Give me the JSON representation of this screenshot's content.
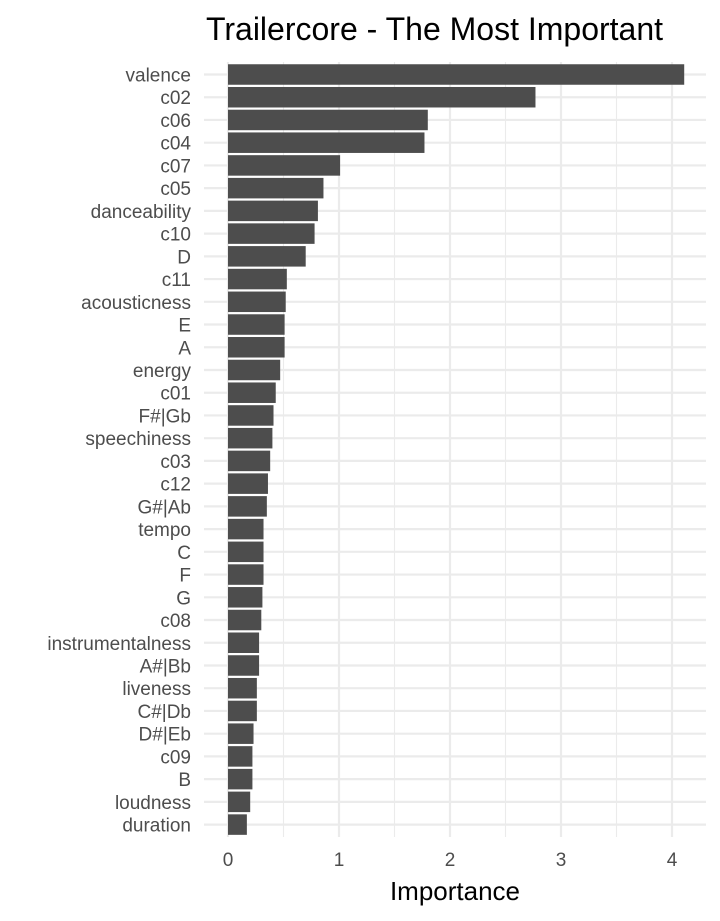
{
  "chart_data": {
    "type": "bar",
    "orientation": "horizontal",
    "title": "Trailercore - The Most Important",
    "xlabel": "Importance",
    "ylabel": "",
    "xlim": [
      0,
      4.2
    ],
    "xticks": [
      0,
      1,
      2,
      3,
      4
    ],
    "grid": true,
    "legend": "none",
    "bar_color": "#4d4d4d",
    "grid_color": "#ebebeb",
    "categories": [
      "valence",
      "c02",
      "c06",
      "c04",
      "c07",
      "c05",
      "danceability",
      "c10",
      "D",
      "c11",
      "acousticness",
      "E",
      "A",
      "energy",
      "c01",
      "F#|Gb",
      "speechiness",
      "c03",
      "c12",
      "G#|Ab",
      "tempo",
      "C",
      "F",
      "G",
      "c08",
      "instrumentalness",
      "A#|Bb",
      "liveness",
      "C#|Db",
      "D#|Eb",
      "c09",
      "B",
      "loudness",
      "duration"
    ],
    "values": [
      4.11,
      2.77,
      1.8,
      1.77,
      1.01,
      0.86,
      0.81,
      0.78,
      0.7,
      0.53,
      0.52,
      0.51,
      0.51,
      0.47,
      0.43,
      0.41,
      0.4,
      0.38,
      0.36,
      0.35,
      0.32,
      0.32,
      0.32,
      0.31,
      0.3,
      0.28,
      0.28,
      0.26,
      0.26,
      0.23,
      0.22,
      0.22,
      0.2,
      0.17
    ]
  }
}
